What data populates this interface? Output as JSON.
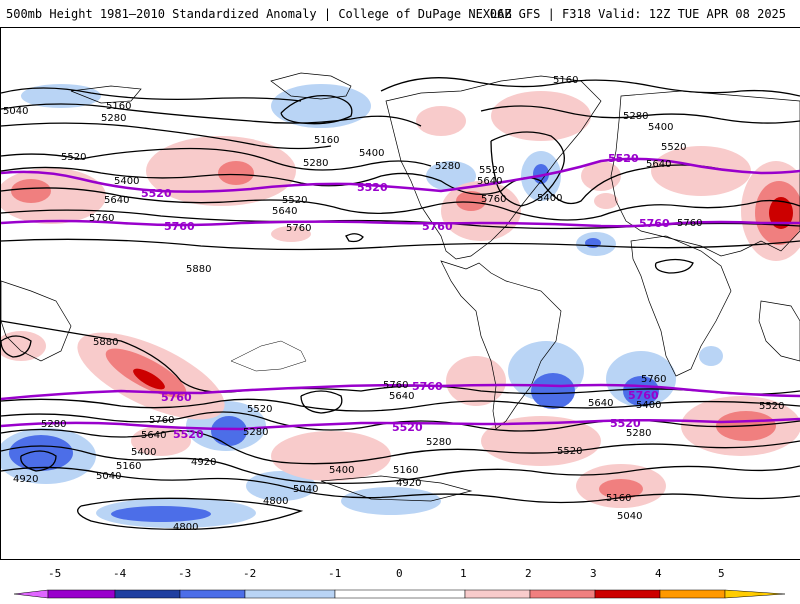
{
  "header": {
    "left": "500mb Height 1981–2010 Standardized Anomaly | College of DuPage NEXLAB",
    "right": "06Z GFS | F318 Valid: 12Z TUE APR 08 2025"
  },
  "contour_labels": [
    "5160",
    "5280",
    "5400",
    "5520",
    "5640",
    "5760",
    "5880",
    "5040",
    "4920",
    "4800"
  ],
  "highlight_labels": [
    "5520",
    "5760"
  ],
  "colorbar": {
    "ticks": [
      "-5",
      "-4",
      "-3",
      "-2",
      "-1",
      "0",
      "1",
      "2",
      "3",
      "4",
      "5"
    ],
    "colors": [
      "#e066ff",
      "#9900cc",
      "#1f3fa0",
      "#4c6ee8",
      "#b9d4f5",
      "#ffffff",
      "#f8cbcb",
      "#f07f7f",
      "#cc0000",
      "#ff9900"
    ]
  },
  "map_labels": {
    "l5040_tl": "5040",
    "l5160_tl": "5160",
    "l5280_tl": "5280",
    "l5160_top": "5160",
    "l5160_n": "5160",
    "l5280_n": "5280",
    "l5400_n": "5400",
    "l5520_w": "5520",
    "l5400_w": "5400",
    "l5640_w": "5640",
    "l5520_c": "5520",
    "l5640_c": "5640",
    "l5760_w": "5760",
    "l5760_c": "5760",
    "l5880_w": "5880",
    "l5280_na": "5280",
    "l5520_na": "5520",
    "l5640_na": "5640",
    "l5760_na": "5760",
    "l5400_atl": "5400",
    "l5280_eu": "5280",
    "l5400_eu": "5400",
    "l5520_eu": "5520",
    "l5640_eu": "5640",
    "l5760_ea": "5760",
    "l5880_sp": "5880",
    "l5760_sp": "5760",
    "l5640_sp": "5640",
    "l5400_sp": "5400",
    "l5280_sw": "5280",
    "l5160_sw": "5160",
    "l5040_sw": "5040",
    "l4920_sw": "4920",
    "l5520_sc": "5520",
    "l5280_sc": "5280",
    "l4920_sc": "4920",
    "l4800_sc": "4800",
    "l5040_sc": "5040",
    "l5400_sc": "5400",
    "l5160_sc": "5160",
    "l4920_sc2": "4920",
    "l4800_ant": "4800",
    "l5760_sa": "5760",
    "l5640_sa": "5640",
    "l5280_sa": "5280",
    "l5520_sa": "5520",
    "l5760_se": "5760",
    "l5640_se": "5640",
    "l5400_se": "5400",
    "l5280_se": "5280",
    "l5160_se": "5160",
    "l5040_se": "5040",
    "l5520_se2": "5520",
    "p5520_na": "5520",
    "p5520_c": "5520",
    "p5520_atl": "5520",
    "p5760_w": "5760",
    "p5760_c": "5760",
    "p5760_e": "5760",
    "p5760_sp": "5760",
    "p5520_sp": "5520",
    "p5760_sa": "5760",
    "p5520_sa": "5520",
    "p5760_si": "5760",
    "p5520_si": "5520"
  }
}
